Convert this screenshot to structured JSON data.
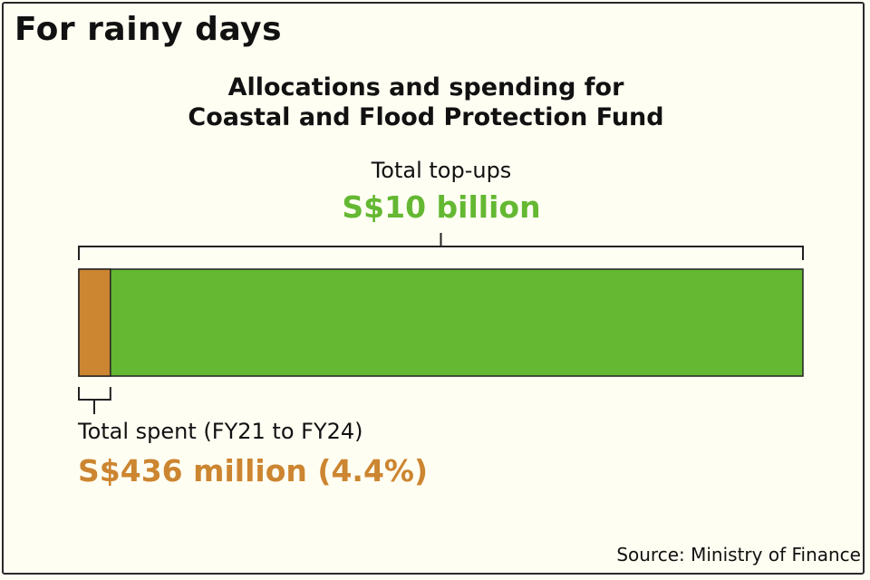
{
  "header": {
    "title": "For rainy days"
  },
  "colors": {
    "topup": "#64b832",
    "spent": "#cc8530",
    "background": "#fffef2",
    "ink": "#111111"
  },
  "chart_data": {
    "type": "bar",
    "orientation": "horizontal-stacked",
    "title_lines": [
      "Allocations and spending for",
      "Coastal and Flood Protection Fund"
    ],
    "unit": "S$ million",
    "total": {
      "label": "Total top-ups",
      "display": "S$10 billion",
      "value": 10000
    },
    "spent": {
      "label": "Total spent (FY21 to FY24)",
      "display": "S$436 million (4.4%)",
      "value": 436,
      "percent": 4.4
    },
    "source": "Source: Ministry of Finance"
  }
}
